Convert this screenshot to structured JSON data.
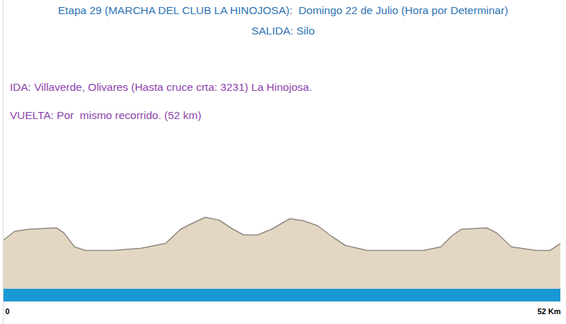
{
  "chart_data": {
    "type": "area",
    "title": "Etapa 29 (MARCHA DEL CLUB LA HINOJOSA):  Domingo 22 de Julio (Hora por Determinar)",
    "subtitle": "SALIDA: Silo",
    "annotations": [
      "IDA: Villaverde, Olivares (Hasta cruce crta: 3231) La Hinojosa.",
      "VUELTA: Por  mismo recorrido. (52 km)"
    ],
    "x": [
      0,
      1.0,
      2.3,
      4.9,
      5.6,
      6.6,
      7.6,
      10.2,
      12.8,
      15.1,
      16.5,
      17.4,
      18.8,
      20.1,
      21.4,
      22.4,
      23.7,
      25.0,
      26.7,
      28.0,
      29.3,
      30.6,
      31.9,
      33.9,
      36.5,
      39.2,
      40.8,
      41.8,
      42.7,
      45.1,
      46.0,
      47.4,
      49.7,
      51.0,
      52
    ],
    "values": [
      70,
      82,
      85,
      87,
      80,
      60,
      55,
      55,
      58,
      65,
      85,
      92,
      102,
      98,
      85,
      77,
      77,
      85,
      100,
      97,
      90,
      75,
      62,
      55,
      55,
      55,
      60,
      75,
      85,
      87,
      80,
      60,
      55,
      55,
      65
    ],
    "color": "#e3d7c3",
    "xlim": [
      0,
      52
    ],
    "xticks": [
      0,
      {
        "value": 52,
        "label": "52 Km"
      }
    ],
    "ylim": [
      0,
      150
    ],
    "tick_labels": "x"
  }
}
